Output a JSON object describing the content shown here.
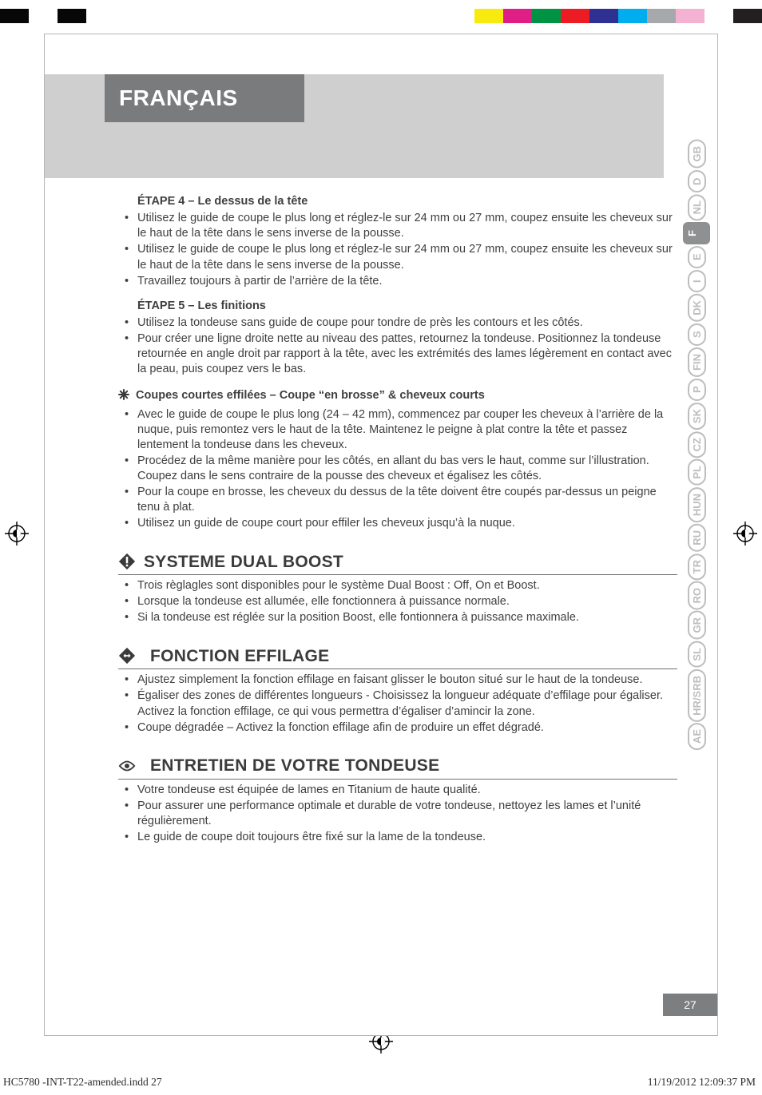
{
  "colorbar": {
    "left": [
      "#070707",
      "#ffffff",
      "#070707",
      "#ffffff"
    ],
    "right": [
      "#f6ea0e",
      "#e01f86",
      "#009344",
      "#ed1c24",
      "#2e3192",
      "#00adee",
      "#a6a8ab",
      "#f4b2d2",
      "#ffffff",
      "#231f20"
    ]
  },
  "lang_badge": "FRANÇAIS",
  "tabs": [
    {
      "code": "GB",
      "active": false
    },
    {
      "code": "D",
      "active": false
    },
    {
      "code": "NL",
      "active": false
    },
    {
      "code": "F",
      "active": true
    },
    {
      "code": "E",
      "active": false
    },
    {
      "code": "I",
      "active": false
    },
    {
      "code": "DK",
      "active": false
    },
    {
      "code": "S",
      "active": false
    },
    {
      "code": "FIN",
      "active": false
    },
    {
      "code": "P",
      "active": false
    },
    {
      "code": "SK",
      "active": false
    },
    {
      "code": "CZ",
      "active": false
    },
    {
      "code": "PL",
      "active": false
    },
    {
      "code": "HUN",
      "active": false
    },
    {
      "code": "RU",
      "active": false
    },
    {
      "code": "TR",
      "active": false
    },
    {
      "code": "RO",
      "active": false
    },
    {
      "code": "GR",
      "active": false
    },
    {
      "code": "SL",
      "active": false
    },
    {
      "code": "HR/SRB",
      "active": false
    },
    {
      "code": "AE",
      "active": false
    }
  ],
  "step4": {
    "title": "ÉTAPE 4 – Le dessus de la tête",
    "items": [
      "Utilisez le guide de coupe le plus long et réglez-le sur 24 mm ou 27 mm, coupez ensuite les cheveux sur le haut de la tête dans le sens inverse de la pousse.",
      "Utilisez le guide de coupe le plus long et réglez-le sur 24 mm ou 27 mm, coupez ensuite les cheveux sur le haut de la tête dans le sens inverse de la pousse.",
      " Travaillez toujours à partir de l’arrière de la tête."
    ]
  },
  "step5": {
    "title": "ÉTAPE 5 – Les finitions",
    "items": [
      "Utilisez la tondeuse sans guide de coupe pour tondre de près les contours et les côtés.",
      "Pour créer une ligne droite nette au niveau des pattes, retournez la tondeuse. Positionnez la tondeuse retournée en angle droit par rapport à la tête, avec les extrémités des lames légèrement en contact avec la peau, puis coupez vers le bas."
    ]
  },
  "short": {
    "title": "Coupes courtes effilées – Coupe “en brosse” & cheveux courts",
    "items": [
      "Avec le guide de coupe le plus long (24 – 42 mm), commencez par couper les cheveux à l’arrière de la nuque, puis remontez vers le haut de la tête. Maintenez le peigne à plat contre la tête et passez lentement la tondeuse dans les cheveux.",
      "Procédez de la même manière pour les côtés, en allant du bas vers le haut, comme sur l’illustration. Coupez dans le sens contraire de la pousse des cheveux et égalisez les côtés.",
      "Pour la coupe en brosse, les cheveux du dessus de la tête doivent être coupés par-dessus un peigne tenu à plat.",
      "Utilisez un guide de coupe court pour effiler les cheveux jusqu’à la nuque."
    ]
  },
  "sections": {
    "dual": {
      "title": "SYSTEME DUAL BOOST",
      "items": [
        " Trois règlagles sont disponibles pour le système Dual Boost : Off, On et Boost.",
        "Lorsque la tondeuse est allumée, elle fonctionnera à puissance normale.",
        "Si la tondeuse est réglée sur la position Boost, elle fontionnera à puissance maximale."
      ]
    },
    "eff": {
      "title": "FONCTION EFFILAGE",
      "items": [
        "Ajustez simplement la fonction effilage en faisant glisser le bouton situé sur le haut de la tondeuse.",
        " Égaliser des zones de différentes longueurs - Choisissez la longueur adéquate d’effilage pour égaliser. Activez la fonction effilage, ce qui vous permettra d’égaliser d’amincir la zone.",
        " Coupe dégradée – Activez la fonction effilage afin de produire un effet dégradé."
      ]
    },
    "care": {
      "title": "ENTRETIEN DE VOTRE TONDEUSE",
      "items": [
        "Votre tondeuse est équipée de lames en Titanium de haute qualité.",
        "Pour assurer une performance optimale et durable de votre tondeuse, nettoyez les lames et l’unité régulièrement.",
        " Le guide de coupe doit toujours être fixé sur la lame de la tondeuse."
      ]
    }
  },
  "page_number": "27",
  "footer": {
    "left": "HC5780 -INT-T22-amended.indd   27",
    "right": "11/19/2012   12:09:37 PM"
  }
}
